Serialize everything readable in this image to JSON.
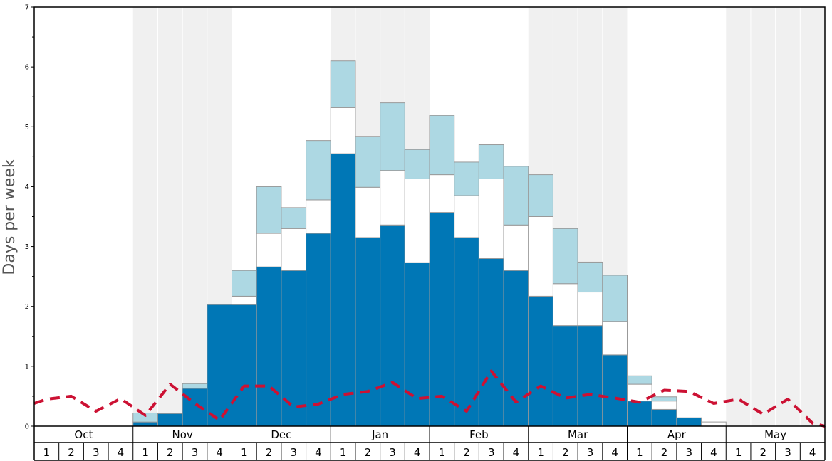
{
  "chart_data": {
    "type": "bar",
    "stacked": true,
    "ylabel": "Days per week",
    "ylim": [
      0,
      7
    ],
    "yticks": [
      "0",
      "1",
      "2",
      "3",
      "4",
      "5",
      "6",
      "7"
    ],
    "months": [
      "Oct",
      "Nov",
      "Dec",
      "Jan",
      "Feb",
      "Mar",
      "Apr",
      "May"
    ],
    "week_labels": [
      "1",
      "2",
      "3",
      "4"
    ],
    "shaded_months": [
      "Nov",
      "Jan",
      "Mar",
      "May"
    ],
    "colors": {
      "dark_blue": "#0077b6",
      "white": "#ffffff",
      "light_blue": "#add8e3",
      "line": "#cc1133",
      "shade": "#f0f0f0",
      "bar_edge": "#999999"
    },
    "bars": [
      {
        "month": "Nov",
        "week": "1",
        "dark": 0.07,
        "white": 0.0,
        "light": 0.15
      },
      {
        "month": "Nov",
        "week": "2",
        "dark": 0.21,
        "white": 0.0,
        "light": 0.0
      },
      {
        "month": "Nov",
        "week": "3",
        "dark": 0.63,
        "white": 0.0,
        "light": 0.08
      },
      {
        "month": "Nov",
        "week": "4",
        "dark": 2.03,
        "white": 0.0,
        "light": 0.0
      },
      {
        "month": "Dec",
        "week": "1",
        "dark": 2.03,
        "white": 0.14,
        "light": 0.43
      },
      {
        "month": "Dec",
        "week": "2",
        "dark": 2.66,
        "white": 0.56,
        "light": 0.78
      },
      {
        "month": "Dec",
        "week": "3",
        "dark": 2.6,
        "white": 0.7,
        "light": 0.35
      },
      {
        "month": "Dec",
        "week": "4",
        "dark": 3.22,
        "white": 0.56,
        "light": 0.99
      },
      {
        "month": "Jan",
        "week": "1",
        "dark": 4.55,
        "white": 0.77,
        "light": 0.78
      },
      {
        "month": "Jan",
        "week": "2",
        "dark": 3.15,
        "white": 0.84,
        "light": 0.85
      },
      {
        "month": "Jan",
        "week": "3",
        "dark": 3.36,
        "white": 0.91,
        "light": 1.13
      },
      {
        "month": "Jan",
        "week": "4",
        "dark": 2.73,
        "white": 1.4,
        "light": 0.49
      },
      {
        "month": "Feb",
        "week": "1",
        "dark": 3.57,
        "white": 0.63,
        "light": 0.99
      },
      {
        "month": "Feb",
        "week": "2",
        "dark": 3.15,
        "white": 0.7,
        "light": 0.56
      },
      {
        "month": "Feb",
        "week": "3",
        "dark": 2.8,
        "white": 1.33,
        "light": 0.57
      },
      {
        "month": "Feb",
        "week": "4",
        "dark": 2.6,
        "white": 0.76,
        "light": 0.98
      },
      {
        "month": "Mar",
        "week": "1",
        "dark": 2.17,
        "white": 1.33,
        "light": 0.7
      },
      {
        "month": "Mar",
        "week": "2",
        "dark": 1.68,
        "white": 0.7,
        "light": 0.92
      },
      {
        "month": "Mar",
        "week": "3",
        "dark": 1.68,
        "white": 0.56,
        "light": 0.5
      },
      {
        "month": "Mar",
        "week": "4",
        "dark": 1.19,
        "white": 0.56,
        "light": 0.77
      },
      {
        "month": "Apr",
        "week": "1",
        "dark": 0.42,
        "white": 0.28,
        "light": 0.14
      },
      {
        "month": "Apr",
        "week": "2",
        "dark": 0.28,
        "white": 0.14,
        "light": 0.07
      },
      {
        "month": "Apr",
        "week": "3",
        "dark": 0.14,
        "white": 0.0,
        "light": 0.0
      },
      {
        "month": "Apr",
        "week": "4",
        "dark": 0.0,
        "white": 0.07,
        "light": 0.0
      }
    ],
    "line_points": [
      {
        "month": "Oct",
        "week": "1",
        "y": 0.45
      },
      {
        "month": "Oct",
        "week": "2",
        "y": 0.5
      },
      {
        "month": "Oct",
        "week": "3",
        "y": 0.25
      },
      {
        "month": "Oct",
        "week": "4",
        "y": 0.46
      },
      {
        "month": "Nov",
        "week": "1",
        "y": 0.18
      },
      {
        "month": "Nov",
        "week": "2",
        "y": 0.7
      },
      {
        "month": "Nov",
        "week": "3",
        "y": 0.38
      },
      {
        "month": "Nov",
        "week": "4",
        "y": 0.1
      },
      {
        "month": "Dec",
        "week": "1",
        "y": 0.67
      },
      {
        "month": "Dec",
        "week": "2",
        "y": 0.67
      },
      {
        "month": "Dec",
        "week": "3",
        "y": 0.32
      },
      {
        "month": "Dec",
        "week": "4",
        "y": 0.37
      },
      {
        "month": "Jan",
        "week": "1",
        "y": 0.53
      },
      {
        "month": "Jan",
        "week": "2",
        "y": 0.58
      },
      {
        "month": "Jan",
        "week": "3",
        "y": 0.73
      },
      {
        "month": "Jan",
        "week": "4",
        "y": 0.46
      },
      {
        "month": "Feb",
        "week": "1",
        "y": 0.5
      },
      {
        "month": "Feb",
        "week": "2",
        "y": 0.25
      },
      {
        "month": "Feb",
        "week": "3",
        "y": 0.92
      },
      {
        "month": "Feb",
        "week": "4",
        "y": 0.4
      },
      {
        "month": "Mar",
        "week": "1",
        "y": 0.67
      },
      {
        "month": "Mar",
        "week": "2",
        "y": 0.47
      },
      {
        "month": "Mar",
        "week": "3",
        "y": 0.53
      },
      {
        "month": "Mar",
        "week": "4",
        "y": 0.47
      },
      {
        "month": "Apr",
        "week": "1",
        "y": 0.4
      },
      {
        "month": "Apr",
        "week": "2",
        "y": 0.6
      },
      {
        "month": "Apr",
        "week": "3",
        "y": 0.58
      },
      {
        "month": "Apr",
        "week": "4",
        "y": 0.38
      },
      {
        "month": "May",
        "week": "1",
        "y": 0.45
      },
      {
        "month": "May",
        "week": "2",
        "y": 0.2
      },
      {
        "month": "May",
        "week": "3",
        "y": 0.45
      },
      {
        "month": "May",
        "week": "4",
        "y": 0.05
      }
    ]
  }
}
